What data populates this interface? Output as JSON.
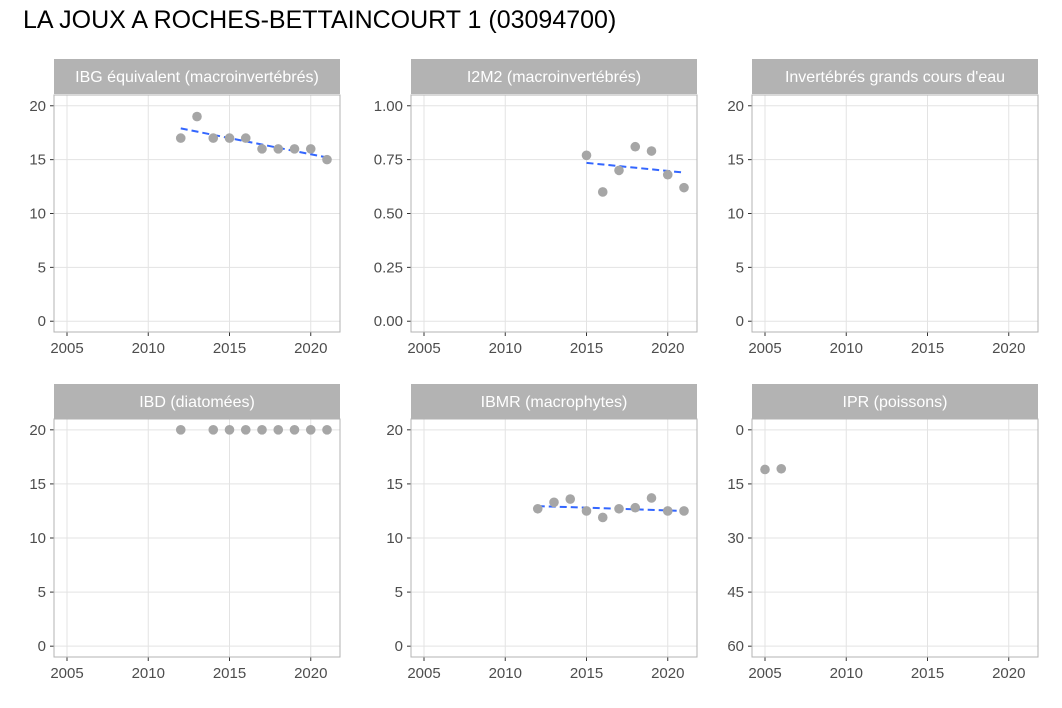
{
  "title": "LA JOUX A ROCHES-BETTAINCOURT 1 (03094700)",
  "colors": {
    "strip": "#b3b3b3",
    "point": "#a6a6a6",
    "trend": "#3366ff",
    "grid": "#e3e3e3",
    "frame": "#b3b3b3"
  },
  "chart_data": [
    {
      "type": "scatter",
      "title": "IBG équivalent (macroinvertébrés)",
      "xlim": [
        2004.2,
        2021.8
      ],
      "ylim": [
        -1,
        21
      ],
      "xticks": [
        2005,
        2010,
        2015,
        2020
      ],
      "xtick_labels": [
        "2005",
        "2010",
        "2015",
        "2020"
      ],
      "yticks": [
        0,
        5,
        10,
        15,
        20
      ],
      "ytick_labels": [
        "0",
        "5",
        "10",
        "15",
        "20"
      ],
      "reversed_y": false,
      "points": {
        "x": [
          2012,
          2013,
          2014,
          2015,
          2016,
          2017,
          2018,
          2019,
          2020,
          2021
        ],
        "y": [
          17,
          19,
          17,
          17,
          17,
          16,
          16,
          16,
          16,
          15
        ]
      },
      "trend": {
        "x": [
          2012,
          2021
        ],
        "y": [
          17.9,
          15.2
        ]
      }
    },
    {
      "type": "scatter",
      "title": "I2M2 (macroinvertébrés)",
      "xlim": [
        2004.2,
        2021.8
      ],
      "ylim": [
        -0.05,
        1.05
      ],
      "xticks": [
        2005,
        2010,
        2015,
        2020
      ],
      "xtick_labels": [
        "2005",
        "2010",
        "2015",
        "2020"
      ],
      "yticks": [
        0,
        0.25,
        0.5,
        0.75,
        1
      ],
      "ytick_labels": [
        "0.00",
        "0.25",
        "0.50",
        "0.75",
        "1.00"
      ],
      "reversed_y": false,
      "points": {
        "x": [
          2015,
          2016,
          2017,
          2018,
          2019,
          2020,
          2021
        ],
        "y": [
          0.77,
          0.6,
          0.7,
          0.81,
          0.79,
          0.68,
          0.62
        ]
      },
      "trend": {
        "x": [
          2015,
          2021
        ],
        "y": [
          0.735,
          0.69
        ]
      }
    },
    {
      "type": "scatter",
      "title": "Invertébrés grands cours d'eau",
      "xlim": [
        2004.2,
        2021.8
      ],
      "ylim": [
        -1,
        21
      ],
      "xticks": [
        2005,
        2010,
        2015,
        2020
      ],
      "xtick_labels": [
        "2005",
        "2010",
        "2015",
        "2020"
      ],
      "yticks": [
        0,
        5,
        10,
        15,
        20
      ],
      "ytick_labels": [
        "0",
        "5",
        "10",
        "15",
        "20"
      ],
      "reversed_y": false,
      "points": {
        "x": [],
        "y": []
      }
    },
    {
      "type": "scatter",
      "title": "IBD (diatomées)",
      "xlim": [
        2004.2,
        2021.8
      ],
      "ylim": [
        -1,
        21
      ],
      "xticks": [
        2005,
        2010,
        2015,
        2020
      ],
      "xtick_labels": [
        "2005",
        "2010",
        "2015",
        "2020"
      ],
      "yticks": [
        0,
        5,
        10,
        15,
        20
      ],
      "ytick_labels": [
        "0",
        "5",
        "10",
        "15",
        "20"
      ],
      "reversed_y": false,
      "points": {
        "x": [
          2012,
          2014,
          2015,
          2016,
          2017,
          2018,
          2019,
          2020,
          2021
        ],
        "y": [
          20,
          20,
          20,
          20,
          20,
          20,
          20,
          20,
          20
        ]
      }
    },
    {
      "type": "scatter",
      "title": "IBMR (macrophytes)",
      "xlim": [
        2004.2,
        2021.8
      ],
      "ylim": [
        -1,
        21
      ],
      "xticks": [
        2005,
        2010,
        2015,
        2020
      ],
      "xtick_labels": [
        "2005",
        "2010",
        "2015",
        "2020"
      ],
      "yticks": [
        0,
        5,
        10,
        15,
        20
      ],
      "ytick_labels": [
        "0",
        "5",
        "10",
        "15",
        "20"
      ],
      "reversed_y": false,
      "points": {
        "x": [
          2012,
          2013,
          2014,
          2015,
          2016,
          2017,
          2018,
          2019,
          2020,
          2021
        ],
        "y": [
          12.7,
          13.3,
          13.6,
          12.5,
          11.9,
          12.7,
          12.8,
          13.7,
          12.5,
          12.5
        ]
      },
      "trend": {
        "x": [
          2012,
          2021
        ],
        "y": [
          12.95,
          12.5
        ]
      }
    },
    {
      "type": "scatter",
      "title": "IPR (poissons)",
      "xlim": [
        2004.2,
        2021.8
      ],
      "ylim": [
        -3,
        63
      ],
      "xticks": [
        2005,
        2010,
        2015,
        2020
      ],
      "xtick_labels": [
        "2005",
        "2010",
        "2015",
        "2020"
      ],
      "yticks": [
        0,
        15,
        30,
        45,
        60
      ],
      "ytick_labels": [
        "0",
        "15",
        "30",
        "45",
        "60"
      ],
      "reversed_y": true,
      "points": {
        "x": [
          2005,
          2006
        ],
        "y": [
          11,
          10.8
        ]
      }
    }
  ]
}
